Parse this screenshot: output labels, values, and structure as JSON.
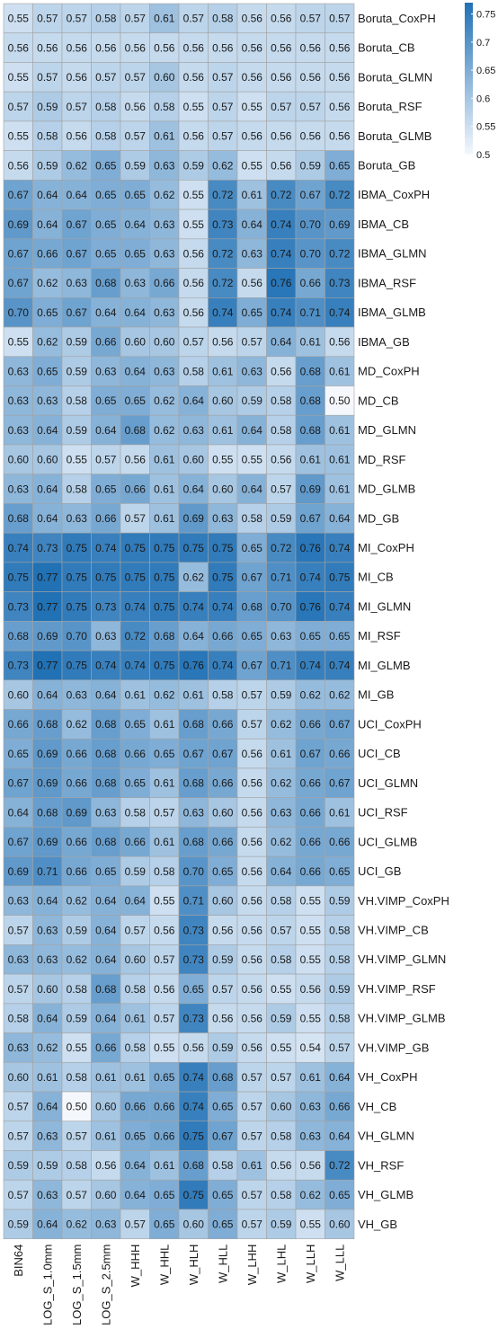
{
  "chart_data": {
    "type": "heatmap",
    "x": [
      "BIN64",
      "LOG_S_1.0mm",
      "LOG_S_1.5mm",
      "LOG_S_2.5mm",
      "W_HHH",
      "W_HHL",
      "W_HLH",
      "W_HLL",
      "W_LHH",
      "W_LHL",
      "W_LLH",
      "W_LLL"
    ],
    "y": [
      "Boruta_CoxPH",
      "Boruta_CB",
      "Boruta_GLMN",
      "Boruta_RSF",
      "Boruta_GLMB",
      "Boruta_GB",
      "IBMA_CoxPH",
      "IBMA_CB",
      "IBMA_GLMN",
      "IBMA_RSF",
      "IBMA_GLMB",
      "IBMA_GB",
      "MD_CoxPH",
      "MD_CB",
      "MD_GLMN",
      "MD_RSF",
      "MD_GLMB",
      "MD_GB",
      "MI_CoxPH",
      "MI_CB",
      "MI_GLMN",
      "MI_RSF",
      "MI_GLMB",
      "MI_GB",
      "UCI_CoxPH",
      "UCI_CB",
      "UCI_GLMN",
      "UCI_RSF",
      "UCI_GLMB",
      "UCI_GB",
      "VH.VIMP_CoxPH",
      "VH.VIMP_CB",
      "VH.VIMP_GLMN",
      "VH.VIMP_RSF",
      "VH.VIMP_GLMB",
      "VH.VIMP_GB",
      "VH_CoxPH",
      "VH_CB",
      "VH_GLMN",
      "VH_RSF",
      "VH_GLMB",
      "VH_GB"
    ],
    "values": [
      [
        0.55,
        0.57,
        0.57,
        0.58,
        0.57,
        0.61,
        0.57,
        0.58,
        0.56,
        0.56,
        0.57,
        0.57
      ],
      [
        0.56,
        0.56,
        0.56,
        0.56,
        0.56,
        0.56,
        0.56,
        0.56,
        0.56,
        0.56,
        0.56,
        0.56
      ],
      [
        0.55,
        0.57,
        0.56,
        0.57,
        0.57,
        0.6,
        0.56,
        0.57,
        0.56,
        0.56,
        0.56,
        0.56
      ],
      [
        0.57,
        0.59,
        0.57,
        0.58,
        0.56,
        0.58,
        0.55,
        0.57,
        0.55,
        0.57,
        0.57,
        0.56
      ],
      [
        0.55,
        0.58,
        0.56,
        0.58,
        0.57,
        0.61,
        0.56,
        0.57,
        0.56,
        0.56,
        0.56,
        0.56
      ],
      [
        0.56,
        0.59,
        0.62,
        0.65,
        0.59,
        0.63,
        0.59,
        0.62,
        0.55,
        0.56,
        0.59,
        0.65
      ],
      [
        0.67,
        0.64,
        0.64,
        0.65,
        0.65,
        0.62,
        0.55,
        0.72,
        0.61,
        0.72,
        0.67,
        0.72
      ],
      [
        0.69,
        0.64,
        0.67,
        0.65,
        0.64,
        0.63,
        0.55,
        0.73,
        0.64,
        0.74,
        0.7,
        0.69
      ],
      [
        0.67,
        0.66,
        0.67,
        0.65,
        0.65,
        0.63,
        0.56,
        0.72,
        0.63,
        0.74,
        0.7,
        0.72
      ],
      [
        0.67,
        0.62,
        0.63,
        0.68,
        0.63,
        0.66,
        0.56,
        0.72,
        0.56,
        0.76,
        0.66,
        0.73
      ],
      [
        0.7,
        0.65,
        0.67,
        0.64,
        0.64,
        0.63,
        0.56,
        0.74,
        0.65,
        0.74,
        0.71,
        0.74
      ],
      [
        0.55,
        0.62,
        0.59,
        0.66,
        0.6,
        0.6,
        0.57,
        0.56,
        0.57,
        0.64,
        0.61,
        0.56
      ],
      [
        0.63,
        0.65,
        0.59,
        0.63,
        0.64,
        0.63,
        0.58,
        0.61,
        0.63,
        0.56,
        0.68,
        0.61
      ],
      [
        0.63,
        0.63,
        0.58,
        0.65,
        0.65,
        0.62,
        0.64,
        0.6,
        0.59,
        0.58,
        0.68,
        0.5
      ],
      [
        0.63,
        0.64,
        0.59,
        0.64,
        0.68,
        0.62,
        0.63,
        0.61,
        0.64,
        0.58,
        0.68,
        0.61
      ],
      [
        0.6,
        0.6,
        0.55,
        0.57,
        0.56,
        0.61,
        0.6,
        0.55,
        0.55,
        0.56,
        0.61,
        0.61
      ],
      [
        0.63,
        0.64,
        0.58,
        0.65,
        0.66,
        0.61,
        0.64,
        0.6,
        0.64,
        0.57,
        0.69,
        0.61
      ],
      [
        0.68,
        0.64,
        0.63,
        0.66,
        0.57,
        0.61,
        0.69,
        0.63,
        0.58,
        0.59,
        0.67,
        0.64
      ],
      [
        0.74,
        0.73,
        0.75,
        0.74,
        0.75,
        0.75,
        0.75,
        0.75,
        0.65,
        0.72,
        0.76,
        0.74
      ],
      [
        0.75,
        0.77,
        0.75,
        0.75,
        0.75,
        0.75,
        0.62,
        0.75,
        0.67,
        0.71,
        0.74,
        0.75
      ],
      [
        0.73,
        0.77,
        0.75,
        0.73,
        0.74,
        0.75,
        0.74,
        0.74,
        0.68,
        0.7,
        0.76,
        0.74
      ],
      [
        0.68,
        0.69,
        0.7,
        0.63,
        0.72,
        0.68,
        0.64,
        0.66,
        0.65,
        0.63,
        0.65,
        0.65
      ],
      [
        0.73,
        0.77,
        0.75,
        0.74,
        0.74,
        0.75,
        0.76,
        0.74,
        0.67,
        0.71,
        0.74,
        0.74
      ],
      [
        0.6,
        0.64,
        0.63,
        0.64,
        0.61,
        0.62,
        0.61,
        0.58,
        0.57,
        0.59,
        0.62,
        0.62
      ],
      [
        0.66,
        0.68,
        0.62,
        0.68,
        0.65,
        0.61,
        0.68,
        0.66,
        0.57,
        0.62,
        0.66,
        0.67
      ],
      [
        0.65,
        0.69,
        0.66,
        0.68,
        0.66,
        0.65,
        0.67,
        0.67,
        0.56,
        0.61,
        0.67,
        0.66
      ],
      [
        0.67,
        0.69,
        0.66,
        0.68,
        0.65,
        0.61,
        0.68,
        0.66,
        0.56,
        0.62,
        0.66,
        0.67
      ],
      [
        0.64,
        0.68,
        0.69,
        0.63,
        0.58,
        0.57,
        0.63,
        0.6,
        0.56,
        0.63,
        0.66,
        0.61
      ],
      [
        0.67,
        0.69,
        0.66,
        0.68,
        0.66,
        0.61,
        0.68,
        0.66,
        0.56,
        0.62,
        0.66,
        0.66
      ],
      [
        0.69,
        0.71,
        0.66,
        0.65,
        0.59,
        0.58,
        0.7,
        0.65,
        0.56,
        0.64,
        0.66,
        0.65
      ],
      [
        0.63,
        0.64,
        0.62,
        0.64,
        0.64,
        0.55,
        0.71,
        0.6,
        0.56,
        0.58,
        0.55,
        0.59
      ],
      [
        0.57,
        0.63,
        0.59,
        0.64,
        0.57,
        0.56,
        0.73,
        0.56,
        0.56,
        0.57,
        0.55,
        0.58
      ],
      [
        0.63,
        0.63,
        0.62,
        0.64,
        0.6,
        0.57,
        0.73,
        0.59,
        0.56,
        0.58,
        0.55,
        0.58
      ],
      [
        0.57,
        0.6,
        0.58,
        0.68,
        0.58,
        0.56,
        0.65,
        0.57,
        0.56,
        0.55,
        0.56,
        0.59
      ],
      [
        0.58,
        0.64,
        0.59,
        0.64,
        0.61,
        0.57,
        0.73,
        0.56,
        0.56,
        0.59,
        0.55,
        0.58
      ],
      [
        0.63,
        0.62,
        0.55,
        0.66,
        0.58,
        0.55,
        0.56,
        0.59,
        0.56,
        0.55,
        0.54,
        0.57
      ],
      [
        0.6,
        0.61,
        0.58,
        0.61,
        0.61,
        0.65,
        0.74,
        0.68,
        0.57,
        0.57,
        0.61,
        0.64
      ],
      [
        0.57,
        0.64,
        0.5,
        0.6,
        0.66,
        0.66,
        0.74,
        0.65,
        0.57,
        0.6,
        0.63,
        0.66
      ],
      [
        0.57,
        0.63,
        0.57,
        0.61,
        0.65,
        0.66,
        0.75,
        0.67,
        0.57,
        0.58,
        0.63,
        0.64
      ],
      [
        0.59,
        0.59,
        0.58,
        0.56,
        0.64,
        0.61,
        0.68,
        0.58,
        0.61,
        0.56,
        0.56,
        0.72
      ],
      [
        0.57,
        0.63,
        0.57,
        0.6,
        0.64,
        0.65,
        0.75,
        0.65,
        0.57,
        0.58,
        0.62,
        0.65
      ],
      [
        0.59,
        0.64,
        0.62,
        0.63,
        0.57,
        0.65,
        0.6,
        0.65,
        0.57,
        0.59,
        0.55,
        0.6
      ]
    ],
    "color_range": [
      0.5,
      0.77
    ],
    "colors": {
      "low": "#f4f8fd",
      "high": "#2171b5",
      "border": "#a3a3a3",
      "text": "#1a1a1a"
    },
    "colorbar": {
      "ticks": [
        0.75,
        0.7,
        0.65,
        0.6,
        0.55,
        0.5
      ],
      "tick_labels": [
        "0.75",
        "0.7",
        "0.65",
        "0.6",
        "0.55",
        "0.5"
      ],
      "placement": "top-right"
    },
    "title": "",
    "xlabel": "",
    "ylabel": "",
    "grid": false
  }
}
